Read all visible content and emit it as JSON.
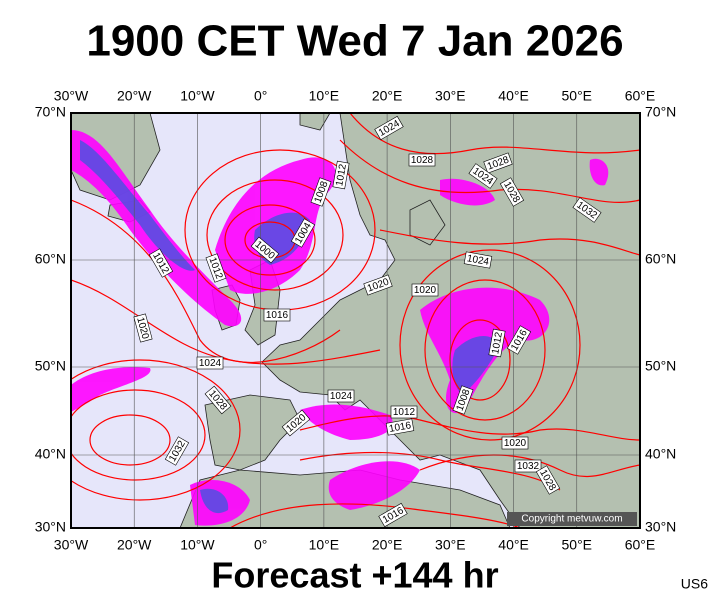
{
  "header": {
    "title": "1900 CET Wed 7 Jan 2026"
  },
  "map": {
    "lon_labels": [
      "30°W",
      "20°W",
      "10°W",
      "0°",
      "10°E",
      "20°E",
      "30°E",
      "40°E",
      "50°E",
      "60°E"
    ],
    "lat_labels": [
      "70°N",
      "60°N",
      "50°N",
      "40°N",
      "30°N"
    ],
    "isobar_labels": [
      "1024",
      "1028",
      "1028",
      "1024",
      "1028",
      "1032",
      "1012",
      "1008",
      "1004",
      "1000",
      "1012",
      "1012",
      "1020",
      "1020",
      "1024",
      "1016",
      "1020",
      "1024",
      "1012",
      "1016",
      "1008",
      "1028",
      "1024",
      "1012",
      "1016",
      "1020",
      "1032",
      "1020",
      "1032",
      "1028",
      "1016"
    ],
    "copyright": "Copyright metvuw.com"
  },
  "footer": {
    "text": "Forecast +144 hr",
    "code": "US6"
  }
}
